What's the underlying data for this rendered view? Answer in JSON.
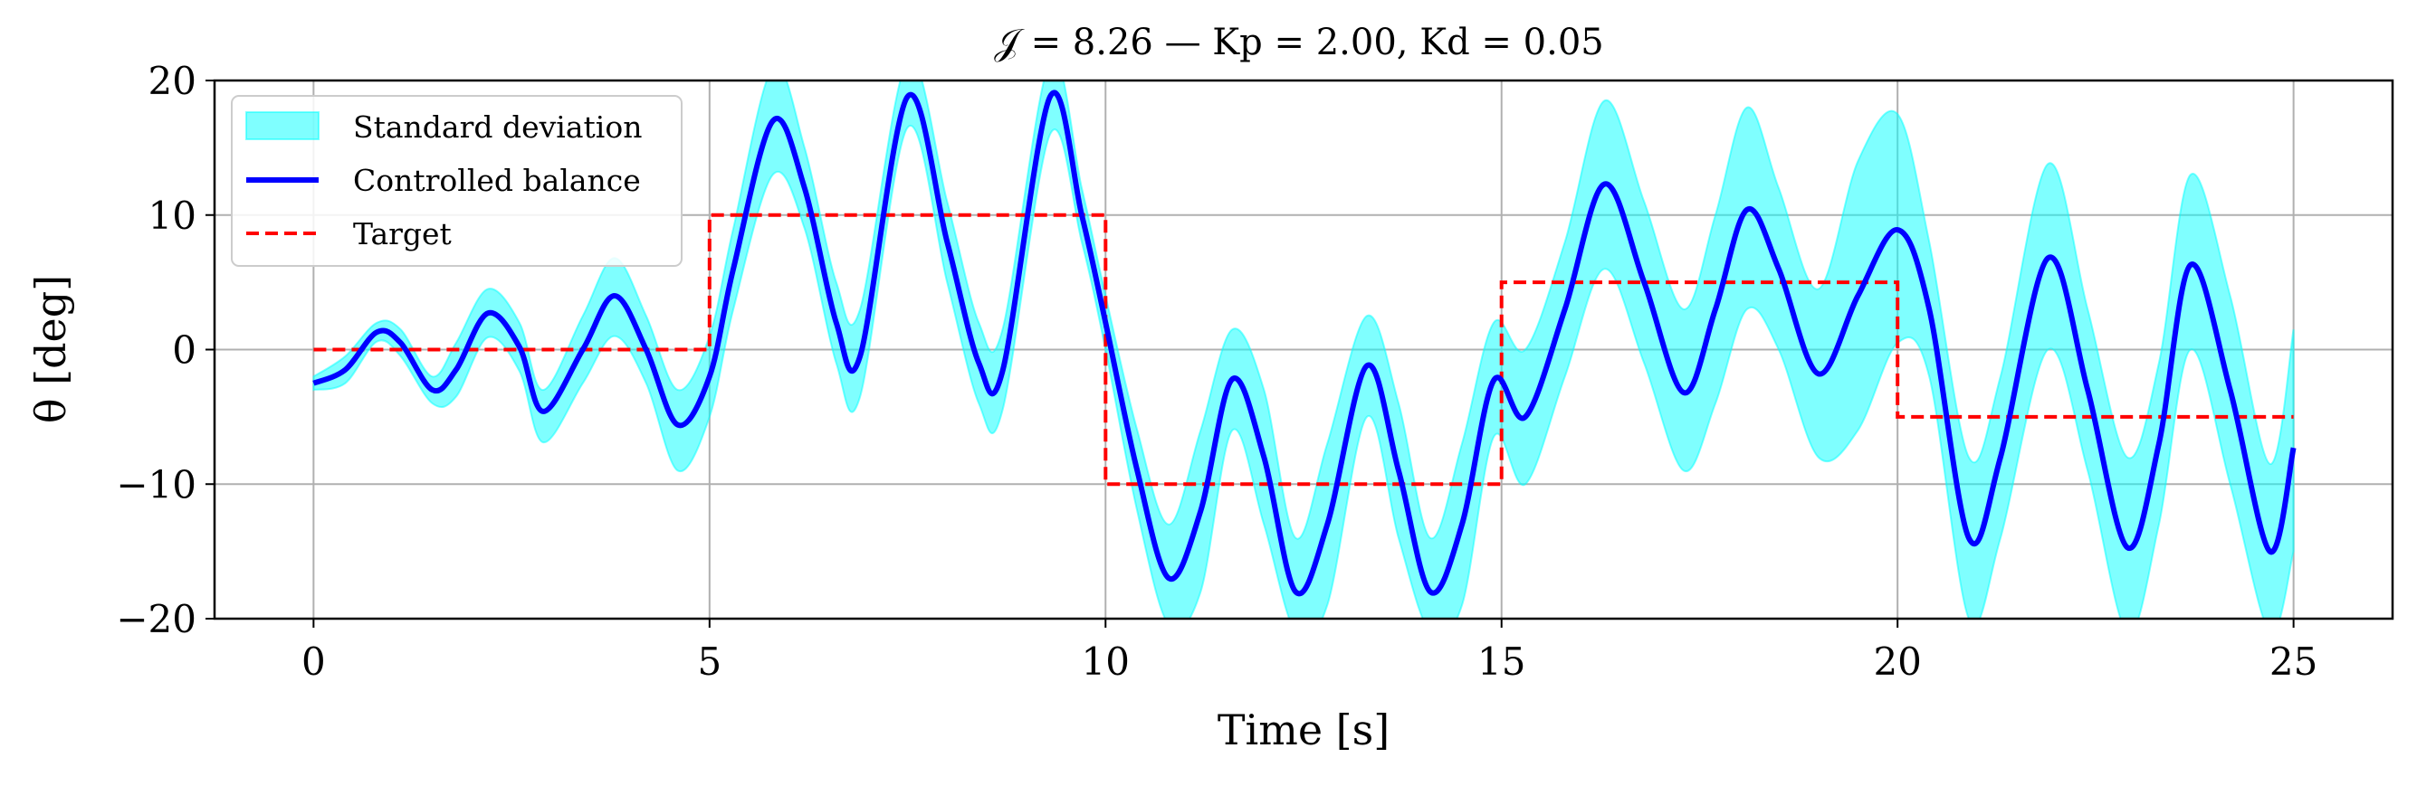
{
  "chart_data": {
    "type": "line",
    "title": "𝒥 = 8.26 — Kp = 2.00, Kd = 0.05",
    "xlabel": "Time [s]",
    "ylabel": "θ [deg]",
    "xlim": [
      -1.25,
      26.25
    ],
    "ylim": [
      -20,
      20
    ],
    "xticks": [
      0,
      5,
      10,
      15,
      20,
      25
    ],
    "yticks": [
      -20,
      -10,
      0,
      10,
      20
    ],
    "xtick_labels": [
      "0",
      "5",
      "10",
      "15",
      "20",
      "25"
    ],
    "ytick_labels": [
      "−20",
      "−10",
      "0",
      "10",
      "20"
    ],
    "grid": true,
    "legend_position": "top-left",
    "legend": [
      "Standard deviation",
      "Controlled balance",
      "Target"
    ],
    "colors": {
      "band": "#00ffff",
      "line": "#0000ff",
      "target": "#ff0000",
      "grid": "#b0b0b0",
      "axes": "#000000"
    },
    "series": [
      {
        "name": "Controlled balance",
        "x": [
          0,
          0.4,
          0.8,
          1.1,
          1.5,
          1.8,
          2.2,
          2.6,
          2.9,
          3.4,
          3.8,
          4.2,
          4.6,
          5.0,
          5.3,
          5.8,
          6.2,
          6.6,
          6.9,
          7.5,
          8.0,
          8.4,
          8.7,
          9.3,
          9.7,
          10.0,
          10.4,
          10.8,
          11.2,
          11.6,
          12.0,
          12.4,
          12.8,
          13.3,
          13.7,
          14.1,
          14.5,
          14.9,
          15.3,
          15.8,
          16.3,
          16.8,
          17.3,
          17.7,
          18.1,
          18.5,
          19.0,
          19.5,
          20.0,
          20.4,
          20.9,
          21.3,
          21.9,
          22.4,
          22.9,
          23.3,
          23.7,
          24.2,
          24.7,
          25.0
        ],
        "y": [
          -2.5,
          -1.5,
          1.3,
          0.5,
          -3.0,
          -1.5,
          2.7,
          0.2,
          -4.6,
          0.0,
          4.0,
          0.0,
          -5.6,
          -2.0,
          6.0,
          17.0,
          12.0,
          2.0,
          -0.5,
          18.8,
          8.0,
          -1.0,
          -1.6,
          18.8,
          10.0,
          2.0,
          -9.0,
          -17.0,
          -12.0,
          -2.2,
          -8.0,
          -18.0,
          -13.0,
          -1.2,
          -9.0,
          -18.0,
          -13.0,
          -2.3,
          -5.0,
          3.0,
          12.3,
          5.0,
          -3.2,
          3.0,
          10.4,
          6.0,
          -1.8,
          4.0,
          8.9,
          3.0,
          -14.0,
          -8.0,
          6.8,
          -3.0,
          -14.7,
          -7.0,
          6.3,
          -3.0,
          -15.0,
          -7.3
        ]
      },
      {
        "name": "Standard deviation",
        "x": [
          0,
          0.4,
          0.8,
          1.1,
          1.5,
          1.8,
          2.2,
          2.6,
          2.9,
          3.4,
          3.8,
          4.2,
          4.6,
          5.0,
          5.3,
          5.8,
          6.2,
          6.6,
          6.9,
          7.5,
          8.0,
          8.4,
          8.7,
          9.3,
          9.7,
          10.0,
          10.4,
          10.8,
          11.2,
          11.6,
          12.0,
          12.4,
          12.8,
          13.3,
          13.7,
          14.1,
          14.5,
          14.9,
          15.3,
          15.8,
          16.3,
          16.8,
          17.3,
          17.7,
          18.1,
          18.5,
          19.0,
          19.5,
          20.0,
          20.4,
          20.9,
          21.3,
          21.9,
          22.4,
          22.9,
          23.3,
          23.7,
          24.2,
          24.7,
          25.0
        ],
        "upper": [
          -2.0,
          -0.5,
          2.0,
          1.5,
          -2.0,
          0.5,
          4.5,
          2.0,
          -3.0,
          2.5,
          6.8,
          2.5,
          -3.0,
          1.0,
          9.0,
          21.0,
          15.0,
          5.0,
          3.0,
          21.5,
          11.0,
          2.0,
          1.5,
          21.5,
          12.0,
          4.0,
          -6.0,
          -13.0,
          -6.0,
          1.5,
          -3.0,
          -14.0,
          -7.0,
          2.5,
          -4.0,
          -14.0,
          -7.0,
          2.0,
          0.0,
          8.0,
          18.5,
          11.0,
          3.0,
          10.0,
          18.0,
          12.0,
          4.5,
          14.0,
          17.5,
          8.0,
          -8.0,
          -2.0,
          13.8,
          3.0,
          -8.0,
          -1.0,
          13.0,
          4.0,
          -8.5,
          1.5
        ],
        "lower": [
          -3.0,
          -2.5,
          0.6,
          -0.5,
          -4.0,
          -3.5,
          0.9,
          -1.6,
          -6.9,
          -2.5,
          1.0,
          -2.5,
          -9.0,
          -5.0,
          3.0,
          13.0,
          9.0,
          -1.0,
          -3.5,
          16.5,
          5.0,
          -4.0,
          -4.5,
          16.0,
          8.0,
          0.0,
          -12.0,
          -20.5,
          -18.0,
          -6.0,
          -13.0,
          -21.0,
          -19.0,
          -5.0,
          -14.0,
          -21.0,
          -19.0,
          -6.5,
          -10.0,
          -2.0,
          6.0,
          -1.0,
          -9.0,
          -4.0,
          3.0,
          0.0,
          -8.0,
          -6.0,
          0.5,
          -2.0,
          -20.0,
          -14.0,
          0.0,
          -9.0,
          -21.0,
          -13.0,
          0.0,
          -10.0,
          -21.0,
          -15.0
        ]
      },
      {
        "name": "Target",
        "x": [
          0,
          5,
          5,
          10,
          10,
          15,
          15,
          20,
          20,
          25
        ],
        "y": [
          0,
          0,
          10,
          10,
          -10,
          -10,
          5,
          5,
          -5,
          -5
        ]
      }
    ]
  }
}
